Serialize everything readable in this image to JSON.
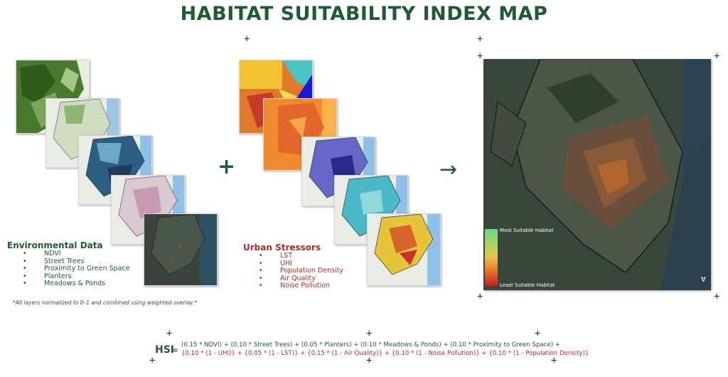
{
  "title": "HABITAT SUITABILITY INDEX MAP",
  "operators": {
    "plus": "+",
    "arrow": "→"
  },
  "environmental": {
    "heading": "Environmental Data",
    "items": [
      "NDVI",
      "Street Trees",
      "Proximity to Green Space",
      "Planters",
      "Meadows & Ponds"
    ]
  },
  "stressors": {
    "heading": "Urban Stressors",
    "items": [
      "LST",
      "UHI",
      "Population Density",
      "Air Quality",
      "Noise Pollution"
    ]
  },
  "note": "*All layers normalized to 0–1 and combined using weighted overlay.*",
  "legend": {
    "top": "Most Suitable Habitat",
    "bottom": "Least Suitable Habitat"
  },
  "north_arrow": "Ɐ",
  "formula": {
    "label": "HSI",
    "equals": "=",
    "line1": "(0.15 * NDVI)  +  (0.10 * Street Trees)  +  (0.05 * Planters)  +  (0.10 * Meadows & Ponds)  +  (0.10 * Proximity to Green Space)  +",
    "line2": "{0.10 * (1 - UHI)} + {0.05 * (1 - LST)} + {0.15 * (1 - Air Quality)} + {0.10 * (1 - Noise Pollution)} + {0.10 * (1 - Population Density)}"
  },
  "colors": {
    "green": "#1f5a33",
    "red": "#b02a2a"
  }
}
